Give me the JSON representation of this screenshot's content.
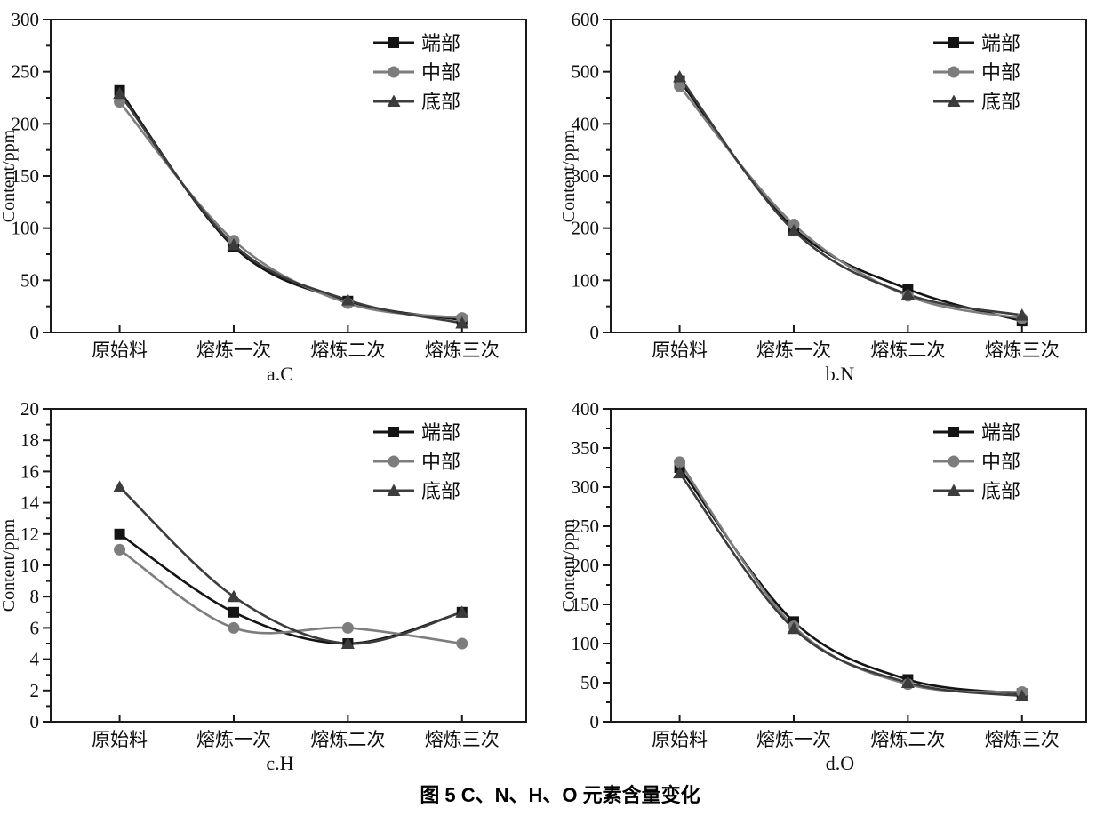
{
  "figure_caption": "图 5  C、N、H、O 元素含量变化",
  "colors": {
    "axis": "#1a1a1a",
    "series_end": "#141414",
    "series_middle": "#7d7d7d",
    "series_bottom": "#3c3c3c"
  },
  "legend": {
    "position": "top-right",
    "entries": [
      "端部",
      "中部",
      "底部"
    ]
  },
  "chart_data": [
    {
      "type": "line",
      "title": "a.C",
      "ylabel": "Content/ppm",
      "categories": [
        "原始料",
        "熔炼一次",
        "熔炼二次",
        "熔炼三次"
      ],
      "ylim": [
        0,
        300
      ],
      "ytick_step": 50,
      "yminor_step": 25,
      "grid": false,
      "legend_position": "top-right",
      "series": [
        {
          "name": "端部",
          "marker": "square",
          "color": "#141414",
          "values": [
            232,
            82,
            30,
            12
          ]
        },
        {
          "name": "中部",
          "marker": "circle",
          "color": "#7d7d7d",
          "values": [
            221,
            88,
            28,
            14
          ]
        },
        {
          "name": "底部",
          "marker": "triangle",
          "color": "#3c3c3c",
          "values": [
            229,
            84,
            31,
            9
          ]
        }
      ]
    },
    {
      "type": "line",
      "title": "b.N",
      "ylabel": "Content/ppm",
      "categories": [
        "原始料",
        "熔炼一次",
        "熔炼二次",
        "熔炼三次"
      ],
      "ylim": [
        0,
        600
      ],
      "ytick_step": 100,
      "yminor_step": 50,
      "grid": false,
      "legend_position": "top-right",
      "series": [
        {
          "name": "端部",
          "marker": "square",
          "color": "#141414",
          "values": [
            483,
            200,
            83,
            22
          ]
        },
        {
          "name": "中部",
          "marker": "circle",
          "color": "#7d7d7d",
          "values": [
            472,
            207,
            70,
            27
          ]
        },
        {
          "name": "底部",
          "marker": "triangle",
          "color": "#3c3c3c",
          "values": [
            490,
            195,
            73,
            33
          ]
        }
      ]
    },
    {
      "type": "line",
      "title": "c.H",
      "ylabel": "Content/ppm",
      "categories": [
        "原始料",
        "熔炼一次",
        "熔炼二次",
        "熔炼三次"
      ],
      "ylim": [
        0,
        20
      ],
      "ytick_step": 2,
      "yminor_step": 1,
      "grid": false,
      "legend_position": "top-right",
      "series": [
        {
          "name": "端部",
          "marker": "square",
          "color": "#141414",
          "values": [
            12,
            7,
            5,
            7
          ]
        },
        {
          "name": "中部",
          "marker": "circle",
          "color": "#7d7d7d",
          "values": [
            11,
            6,
            6,
            5
          ]
        },
        {
          "name": "底部",
          "marker": "triangle",
          "color": "#3c3c3c",
          "values": [
            15,
            8,
            5,
            7
          ]
        }
      ]
    },
    {
      "type": "line",
      "title": "d.O",
      "ylabel": "Content/ppm",
      "categories": [
        "原始料",
        "熔炼一次",
        "熔炼二次",
        "熔炼三次"
      ],
      "ylim": [
        0,
        400
      ],
      "ytick_step": 50,
      "yminor_step": 25,
      "grid": false,
      "legend_position": "top-right",
      "series": [
        {
          "name": "端部",
          "marker": "square",
          "color": "#141414",
          "values": [
            325,
            128,
            54,
            36
          ]
        },
        {
          "name": "中部",
          "marker": "circle",
          "color": "#7d7d7d",
          "values": [
            332,
            122,
            48,
            38
          ]
        },
        {
          "name": "底部",
          "marker": "triangle",
          "color": "#3c3c3c",
          "values": [
            318,
            119,
            50,
            33
          ]
        }
      ]
    }
  ]
}
